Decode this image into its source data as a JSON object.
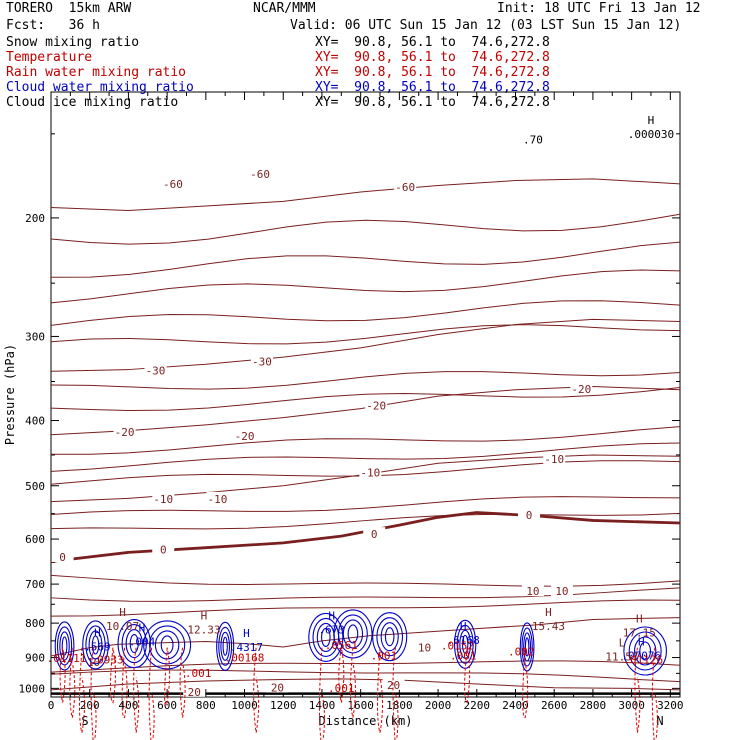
{
  "header": {
    "model": "TORERO  15km ARW",
    "center": "NCAR/MMM",
    "init": "Init: 18 UTC Fri 13 Jan 12",
    "fcst": "Fcst:   36 h",
    "valid": "Valid: 06 UTC Sun 15 Jan 12 (03 LST Sun 15 Jan 12)",
    "xy_range": "XY=  90.8, 56.1 to  74.6,272.8"
  },
  "fields": [
    {
      "name": "Snow mixing ratio",
      "color": "#000000"
    },
    {
      "name": "Temperature",
      "color": "#c00000"
    },
    {
      "name": "Rain water mixing ratio",
      "color": "#c00000"
    },
    {
      "name": "Cloud water mixing ratio",
      "color": "#0000c0"
    },
    {
      "name": "Cloud ice mixing ratio",
      "color": "#000000"
    }
  ],
  "colors": {
    "temperature": "#7a1f1f",
    "zero_isotherm": "#7a1f1f",
    "rain": "#e00000",
    "cloud_water": "#0000c8",
    "text_red": "#c00000",
    "text_blue": "#0000c0"
  },
  "chart_data": {
    "type": "contour",
    "xlabel": "Distance (km)",
    "ylabel": "Pressure (hPa)",
    "xlim": [
      0,
      3250
    ],
    "ylim": [
      1030,
      130
    ],
    "y_scale": "log",
    "x_ticks": [
      0,
      200,
      400,
      600,
      800,
      1000,
      1200,
      1400,
      1600,
      1800,
      2000,
      2200,
      2400,
      2600,
      2800,
      3000,
      3200
    ],
    "y_ticks": [
      200,
      300,
      400,
      500,
      600,
      700,
      800,
      900,
      1000
    ],
    "x_end_labels": [
      "S",
      "N"
    ],
    "temperature_contours": [
      {
        "level": "-60",
        "points": [
          [
            0,
            193
          ],
          [
            400,
            195
          ],
          [
            800,
            192
          ],
          [
            1200,
            189
          ],
          [
            1600,
            183
          ],
          [
            2000,
            179
          ],
          [
            2400,
            176
          ],
          [
            2800,
            175
          ],
          [
            3250,
            178
          ]
        ],
        "labels": [
          [
            630,
            178
          ],
          [
            1080,
            172
          ],
          [
            1830,
            180
          ]
        ]
      },
      {
        "level": "-30",
        "points": [
          [
            0,
            338
          ],
          [
            400,
            336
          ],
          [
            800,
            330
          ],
          [
            1200,
            322
          ],
          [
            1600,
            312
          ],
          [
            2000,
            298
          ],
          [
            2400,
            288
          ],
          [
            2800,
            283
          ],
          [
            3250,
            285
          ]
        ],
        "labels": [
          [
            540,
            337
          ],
          [
            1090,
            327
          ]
        ]
      },
      {
        "level": "-20",
        "points": [
          [
            0,
            420
          ],
          [
            400,
            414
          ],
          [
            800,
            406
          ],
          [
            1200,
            396
          ],
          [
            1600,
            384
          ],
          [
            2000,
            368
          ],
          [
            2400,
            360
          ],
          [
            2800,
            356
          ],
          [
            3250,
            360
          ]
        ],
        "labels": [
          [
            380,
            416
          ],
          [
            1000,
            422
          ],
          [
            1680,
            380
          ],
          [
            2740,
            359
          ]
        ]
      },
      {
        "level": "-10",
        "points": [
          [
            0,
            528
          ],
          [
            400,
            522
          ],
          [
            800,
            512
          ],
          [
            1200,
            500
          ],
          [
            1600,
            482
          ],
          [
            2000,
            463
          ],
          [
            2400,
            455
          ],
          [
            2800,
            450
          ],
          [
            3250,
            452
          ]
        ],
        "labels": [
          [
            580,
            523
          ],
          [
            860,
            523
          ],
          [
            1650,
            478
          ],
          [
            2600,
            456
          ]
        ]
      },
      {
        "level": "0",
        "points": [
          [
            0,
            648
          ],
          [
            400,
            628
          ],
          [
            800,
            618
          ],
          [
            1200,
            608
          ],
          [
            1500,
            594
          ],
          [
            1800,
            572
          ],
          [
            2000,
            557
          ],
          [
            2200,
            548
          ],
          [
            2500,
            554
          ],
          [
            2800,
            563
          ],
          [
            3250,
            568
          ]
        ],
        "labels": [
          [
            60,
            638
          ],
          [
            580,
            622
          ],
          [
            1670,
            590
          ],
          [
            2470,
            553
          ]
        ],
        "bold": true
      },
      {
        "level": "10",
        "points": [
          [
            0,
            895
          ],
          [
            200,
            870
          ],
          [
            350,
            860
          ],
          [
            600,
            855
          ],
          [
            800,
            852
          ],
          [
            1000,
            858
          ],
          [
            1200,
            868
          ],
          [
            1400,
            850
          ],
          [
            1650,
            835
          ],
          [
            1900,
            826
          ],
          [
            2200,
            815
          ],
          [
            2500,
            805
          ],
          [
            2800,
            790
          ],
          [
            3250,
            785
          ]
        ],
        "labels": [
          [
            220,
            913
          ],
          [
            1930,
            870
          ],
          [
            2490,
            717
          ],
          [
            2640,
            717
          ]
        ]
      },
      {
        "level": "20",
        "points": [
          [
            0,
            1005
          ],
          [
            400,
            985
          ],
          [
            800,
            975
          ],
          [
            1200,
            970
          ],
          [
            1500,
            968
          ],
          [
            1800,
            972
          ],
          [
            2200,
            985
          ],
          [
            2600,
            998
          ],
          [
            3000,
            1000
          ],
          [
            3250,
            1005
          ]
        ],
        "labels": [
          [
            740,
            1012
          ],
          [
            1170,
            997
          ],
          [
            1770,
            988
          ]
        ]
      }
    ],
    "maxima_labels": [
      {
        "mark": "H",
        "value": "10.07",
        "x": 370,
        "p": 808,
        "color": "#7a1f1f"
      },
      {
        "mark": "H",
        "value": "12.33",
        "x": 790,
        "p": 818,
        "color": "#7a1f1f"
      },
      {
        "mark": "H",
        "value": "15.43",
        "x": 2570,
        "p": 808,
        "color": "#7a1f1f"
      },
      {
        "mark": "H",
        "value": "17.15",
        "x": 3040,
        "p": 826,
        "color": "#7a1f1f"
      },
      {
        "mark": "H",
        "value": ".000030",
        "x": 3100,
        "p": 150,
        "color": "#000000"
      },
      {
        "mark": "H",
        "value": ".569",
        "x": 240,
        "p": 866,
        "color": "#0000c0"
      },
      {
        "mark": "H",
        "value": ".004",
        "x": 470,
        "p": 852,
        "color": "#0000c0"
      },
      {
        "mark": "H",
        "value": ".4317",
        "x": 1010,
        "p": 868,
        "color": "#0000c0"
      },
      {
        "mark": "H",
        "value": ".673",
        "x": 1450,
        "p": 817,
        "color": "#0000c0"
      },
      {
        "mark": "H",
        "value": ".6168",
        "x": 2130,
        "p": 847,
        "color": "#0000c0"
      },
      {
        "mark": "H",
        "value": ".07076",
        "x": 3050,
        "p": 893,
        "color": "#0000c0"
      },
      {
        "mark": "L",
        "value": "11.57",
        "x": 2950,
        "p": 897,
        "color": "#7a1f1f"
      },
      {
        "mark": "",
        "value": ".01111",
        "x": 80,
        "p": 902,
        "color": "#c00000"
      },
      {
        "mark": "",
        "value": ".0933",
        "x": 290,
        "p": 906,
        "color": "#c00000"
      },
      {
        "mark": "",
        "value": ".001",
        "x": 760,
        "p": 948,
        "color": "#c00000"
      },
      {
        "mark": "",
        "value": ".00168",
        "x": 1000,
        "p": 900,
        "color": "#c00000"
      },
      {
        "mark": "",
        "value": ".0561",
        "x": 1500,
        "p": 862,
        "color": "#c00000"
      },
      {
        "mark": "",
        "value": ".001",
        "x": 1500,
        "p": 999,
        "color": "#c00000"
      },
      {
        "mark": "",
        "value": ".001",
        "x": 1720,
        "p": 893,
        "color": "#c00000"
      },
      {
        "mark": "",
        "value": ".0152",
        "x": 2100,
        "p": 863,
        "color": "#c00000"
      },
      {
        "mark": "",
        "value": ".001",
        "x": 2130,
        "p": 893,
        "color": "#c00000"
      },
      {
        "mark": "",
        "value": ".002",
        "x": 2430,
        "p": 882,
        "color": "#c00000"
      },
      {
        "mark": "",
        "value": ".01126",
        "x": 3060,
        "p": 906,
        "color": "#c00000"
      },
      {
        "mark": "",
        "value": ".70",
        "x": 2490,
        "p": 153,
        "color": "#000000"
      }
    ]
  }
}
